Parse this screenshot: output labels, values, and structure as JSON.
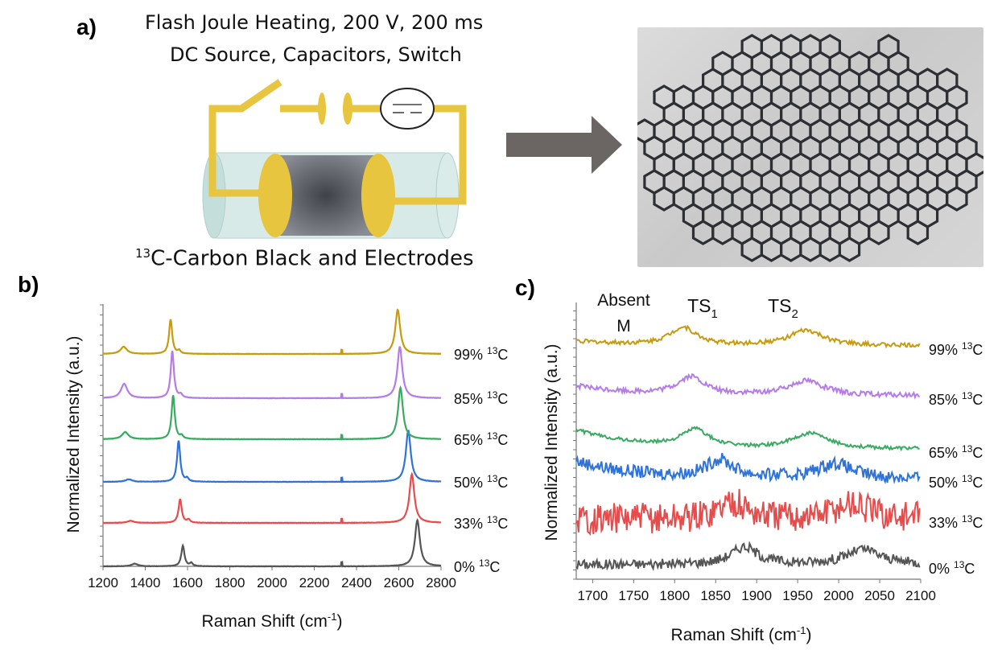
{
  "panel_a": {
    "label": "a)",
    "title_line1": "Flash Joule Heating, 200 V, 200 ms",
    "title_line2": "DC Source, Capacitors, Switch",
    "caption_sup": "13",
    "caption_rest": "C-Carbon Black and Electrodes",
    "photo_description": "Black 3D-printed honeycomb lattice sheet",
    "colors": {
      "wire": "#e8c53f",
      "tube": "#c9e2df",
      "sample": "#5e6168",
      "arrow": "#6b6563"
    }
  },
  "chart_data": [
    {
      "panel": "b)",
      "type": "line",
      "title": "",
      "xlabel": "Raman Shift (cm",
      "xlabel_sup": "-1",
      "xlabel_end": ")",
      "ylabel": "Normalized Intensity (a.u.)",
      "xlim": [
        1200,
        2800
      ],
      "xticks": [
        "1200",
        "1400",
        "1600",
        "1800",
        "2000",
        "2200",
        "2400",
        "2600",
        "2800"
      ],
      "xtick_values": [
        1200,
        1400,
        1600,
        1800,
        2000,
        2200,
        2400,
        2600,
        2800
      ],
      "series": [
        {
          "name": "0%",
          "sup": "13",
          "unit": "C",
          "color": "#555555",
          "D": 1350,
          "G": 1578,
          "twoD": 2688,
          "Gh": 0.4,
          "Dh": 0.05,
          "twoDh": 0.9
        },
        {
          "name": "33%",
          "sup": "13",
          "unit": "C",
          "color": "#e74c4c",
          "D": 1330,
          "G": 1565,
          "twoD": 2662,
          "Gh": 0.46,
          "Dh": 0.04,
          "twoDh": 0.95
        },
        {
          "name": "50%",
          "sup": "13",
          "unit": "C",
          "color": "#2f72d8",
          "D": 1322,
          "G": 1558,
          "twoD": 2645,
          "Gh": 0.8,
          "Dh": 0.05,
          "twoDh": 1.0
        },
        {
          "name": "65%",
          "sup": "13",
          "unit": "C",
          "color": "#3aaa62",
          "D": 1305,
          "G": 1532,
          "twoD": 2608,
          "Gh": 0.85,
          "Dh": 0.14,
          "twoDh": 1.0
        },
        {
          "name": "85%",
          "sup": "13",
          "unit": "C",
          "color": "#b57be8",
          "D": 1300,
          "G": 1528,
          "twoD": 2605,
          "Gh": 0.92,
          "Dh": 0.28,
          "twoDh": 1.0
        },
        {
          "name": "99%",
          "sup": "13",
          "unit": "C",
          "color": "#c89a0e",
          "D": 1298,
          "G": 1520,
          "twoD": 2595,
          "Gh": 0.67,
          "Dh": 0.14,
          "twoDh": 0.86
        }
      ]
    },
    {
      "panel": "c)",
      "type": "line",
      "title": "",
      "xlabel": "Raman Shift (cm",
      "xlabel_sup": "-1",
      "xlabel_end": ")",
      "ylabel": "Normalized Intensity (a.u.)",
      "xlim": [
        1680,
        2100
      ],
      "xticks": [
        "1700",
        "1750",
        "1800",
        "1850",
        "1900",
        "1950",
        "2000",
        "2050",
        "2100"
      ],
      "xtick_values": [
        1700,
        1750,
        1800,
        1850,
        1900,
        1950,
        2000,
        2050,
        2100
      ],
      "annotations": [
        {
          "line1": "Absent",
          "line2": "M"
        },
        {
          "main": "TS",
          "sub": "1"
        },
        {
          "main": "TS",
          "sub": "2"
        }
      ],
      "series": [
        {
          "name": "0%",
          "sup": "13",
          "unit": "C",
          "color": "#555555",
          "ts1": 1885,
          "ts2": 2030,
          "noise": 0.07
        },
        {
          "name": "33%",
          "sup": "13",
          "unit": "C",
          "color": "#e74c4c",
          "ts1": 1870,
          "ts2": 2015,
          "noise": 0.22
        },
        {
          "name": "50%",
          "sup": "13",
          "unit": "C",
          "color": "#2f72d8",
          "ts1": 1855,
          "ts2": 1995,
          "noise": 0.09
        },
        {
          "name": "65%",
          "sup": "13",
          "unit": "C",
          "color": "#3aaa62",
          "ts1": 1825,
          "ts2": 1965,
          "noise": 0.025
        },
        {
          "name": "85%",
          "sup": "13",
          "unit": "C",
          "color": "#b57be8",
          "ts1": 1820,
          "ts2": 1960,
          "noise": 0.035
        },
        {
          "name": "99%",
          "sup": "13",
          "unit": "C",
          "color": "#c89a0e",
          "ts1": 1810,
          "ts2": 1960,
          "noise": 0.03
        }
      ]
    }
  ]
}
